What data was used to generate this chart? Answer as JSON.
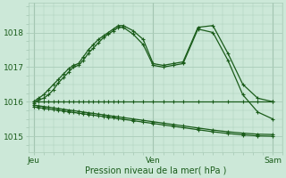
{
  "bg_color": "#cce8d8",
  "grid_color": "#aaccb8",
  "line_color": "#1a5c1a",
  "xlabel": "Pression niveau de la mer( hPa )",
  "xtick_labels": [
    "Jeu",
    "Ven",
    "Sam"
  ],
  "xtick_positions": [
    0,
    24,
    48
  ],
  "ytick_values": [
    1015,
    1016,
    1017,
    1018
  ],
  "ylim": [
    1014.55,
    1018.85
  ],
  "xlim": [
    -1,
    50
  ],
  "series_x": [
    [
      0,
      1,
      2,
      3,
      4,
      5,
      6,
      7,
      8,
      9,
      10,
      11,
      12,
      13,
      14,
      15,
      16,
      17,
      18,
      20,
      22,
      24,
      26,
      28,
      30,
      33,
      36,
      39,
      42,
      45,
      48
    ],
    [
      0,
      1,
      2,
      3,
      4,
      5,
      6,
      7,
      8,
      9,
      10,
      11,
      12,
      13,
      14,
      15,
      16,
      17,
      18,
      20,
      22,
      24,
      26,
      28,
      30,
      33,
      36,
      39,
      42,
      45,
      48
    ],
    [
      0,
      1,
      2,
      3,
      4,
      5,
      6,
      7,
      8,
      9,
      10,
      11,
      12,
      13,
      14,
      15,
      16,
      17,
      18,
      20,
      22,
      24,
      26,
      28,
      30,
      33,
      36,
      39,
      42,
      45,
      48
    ],
    [
      0,
      1,
      2,
      3,
      4,
      5,
      6,
      7,
      8,
      9,
      10,
      11,
      12,
      13,
      14,
      15,
      16,
      17,
      18,
      20,
      22,
      24,
      26,
      28,
      30,
      33,
      36,
      39,
      42,
      45,
      48
    ],
    [
      0,
      1,
      2,
      3,
      4,
      5,
      6,
      7,
      8,
      9,
      10,
      11,
      12,
      13,
      14,
      15,
      16,
      17,
      18,
      20,
      22,
      24,
      26,
      28,
      30,
      33,
      36,
      39,
      42,
      45,
      48
    ]
  ],
  "series_y": [
    [
      1016.0,
      1016.1,
      1016.2,
      1016.35,
      1016.5,
      1016.65,
      1016.8,
      1016.95,
      1017.05,
      1017.1,
      1017.3,
      1017.5,
      1017.65,
      1017.8,
      1017.9,
      1018.0,
      1018.1,
      1018.2,
      1018.2,
      1018.05,
      1017.8,
      1017.1,
      1017.05,
      1017.1,
      1017.15,
      1018.15,
      1018.2,
      1017.4,
      1016.5,
      1016.1,
      1016.0
    ],
    [
      1015.95,
      1016.05,
      1016.1,
      1016.2,
      1016.35,
      1016.55,
      1016.7,
      1016.85,
      1017.0,
      1017.05,
      1017.2,
      1017.4,
      1017.55,
      1017.7,
      1017.85,
      1017.95,
      1018.05,
      1018.15,
      1018.15,
      1017.95,
      1017.65,
      1017.05,
      1017.0,
      1017.05,
      1017.1,
      1018.1,
      1018.0,
      1017.2,
      1016.2,
      1015.7,
      1015.5
    ],
    [
      1016.0,
      1016.0,
      1016.0,
      1016.0,
      1016.0,
      1016.0,
      1016.0,
      1016.0,
      1016.0,
      1016.0,
      1016.0,
      1016.0,
      1016.0,
      1016.0,
      1016.0,
      1016.0,
      1016.0,
      1016.0,
      1016.0,
      1016.0,
      1016.0,
      1016.0,
      1016.0,
      1016.0,
      1016.0,
      1016.0,
      1016.0,
      1016.0,
      1016.0,
      1016.0,
      1016.0
    ],
    [
      1015.85,
      1015.83,
      1015.81,
      1015.79,
      1015.77,
      1015.75,
      1015.73,
      1015.71,
      1015.69,
      1015.67,
      1015.65,
      1015.63,
      1015.61,
      1015.59,
      1015.57,
      1015.55,
      1015.53,
      1015.51,
      1015.49,
      1015.45,
      1015.41,
      1015.37,
      1015.33,
      1015.29,
      1015.25,
      1015.19,
      1015.13,
      1015.08,
      1015.04,
      1015.01,
      1015.0
    ],
    [
      1015.9,
      1015.88,
      1015.86,
      1015.84,
      1015.82,
      1015.8,
      1015.78,
      1015.76,
      1015.74,
      1015.72,
      1015.7,
      1015.68,
      1015.66,
      1015.64,
      1015.62,
      1015.6,
      1015.58,
      1015.56,
      1015.54,
      1015.5,
      1015.46,
      1015.42,
      1015.38,
      1015.34,
      1015.3,
      1015.24,
      1015.18,
      1015.13,
      1015.09,
      1015.06,
      1015.05
    ]
  ]
}
